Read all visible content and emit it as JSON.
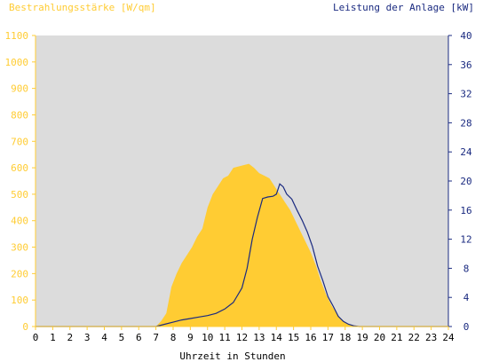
{
  "chart_data": {
    "type": "area",
    "title_left": "Bestrahlungsstärke [W/qm]",
    "title_right": "Leistung der Anlage [kW]",
    "xlabel": "Uhrzeit in Stunden",
    "xlim": [
      0,
      24
    ],
    "x_ticks": [
      "0",
      "1",
      "2",
      "3",
      "4",
      "5",
      "6",
      "7",
      "8",
      "9",
      "10",
      "11",
      "12",
      "13",
      "14",
      "15",
      "16",
      "17",
      "18",
      "19",
      "20",
      "21",
      "22",
      "23",
      "24"
    ],
    "y_left_lim": [
      0,
      1100
    ],
    "y_left_ticks": [
      "0",
      "100",
      "200",
      "300",
      "400",
      "500",
      "600",
      "700",
      "800",
      "900",
      "1000",
      "1100"
    ],
    "y_right_lim": [
      0,
      40
    ],
    "y_right_ticks": [
      "0",
      "4",
      "8",
      "12",
      "16",
      "20",
      "24",
      "28",
      "32",
      "36",
      "40"
    ],
    "grid": false,
    "colors": {
      "background": "#dcdcdc",
      "irradiance_fill": "#ffcc33",
      "power_line": "#1a2a80",
      "left_axis": "#ffcc33",
      "right_axis": "#1a2a80"
    },
    "series": [
      {
        "axis": "left",
        "kind": "area",
        "x": [
          0,
          7.0,
          7.3,
          7.6,
          7.9,
          8.2,
          8.5,
          8.8,
          9.1,
          9.4,
          9.7,
          10.0,
          10.3,
          10.6,
          10.9,
          11.2,
          11.5,
          11.8,
          12.1,
          12.4,
          12.7,
          13.0,
          13.3,
          13.6,
          13.9,
          14.2,
          14.5,
          14.8,
          15.1,
          15.4,
          15.7,
          16.0,
          16.3,
          16.6,
          16.9,
          17.2,
          17.5,
          17.8,
          18.1,
          18.4,
          18.7,
          19.0,
          24
        ],
        "values": [
          0,
          0,
          20,
          50,
          150,
          200,
          240,
          270,
          300,
          340,
          370,
          450,
          500,
          530,
          560,
          570,
          600,
          605,
          610,
          615,
          600,
          580,
          570,
          560,
          530,
          500,
          470,
          440,
          400,
          360,
          320,
          280,
          230,
          170,
          120,
          80,
          50,
          25,
          10,
          3,
          0,
          0,
          0
        ]
      },
      {
        "axis": "right",
        "kind": "line",
        "x": [
          0,
          7.0,
          7.5,
          8.0,
          8.5,
          9.0,
          9.5,
          10.0,
          10.5,
          11.0,
          11.5,
          12.0,
          12.3,
          12.6,
          12.9,
          13.2,
          13.5,
          13.8,
          14.0,
          14.2,
          14.4,
          14.6,
          14.9,
          15.2,
          15.5,
          15.8,
          16.1,
          16.4,
          16.7,
          17.0,
          17.3,
          17.6,
          17.9,
          18.2,
          18.5,
          18.8,
          24
        ],
        "values": [
          0,
          0,
          0.3,
          0.6,
          0.9,
          1.1,
          1.3,
          1.5,
          1.8,
          2.4,
          3.3,
          5.3,
          8.0,
          12.0,
          15.0,
          17.6,
          17.8,
          17.9,
          18.2,
          19.6,
          19.2,
          18.2,
          17.5,
          16.0,
          14.6,
          13.0,
          11.0,
          8.3,
          6.3,
          4.1,
          2.8,
          1.4,
          0.7,
          0.3,
          0.1,
          0,
          0
        ]
      }
    ]
  }
}
